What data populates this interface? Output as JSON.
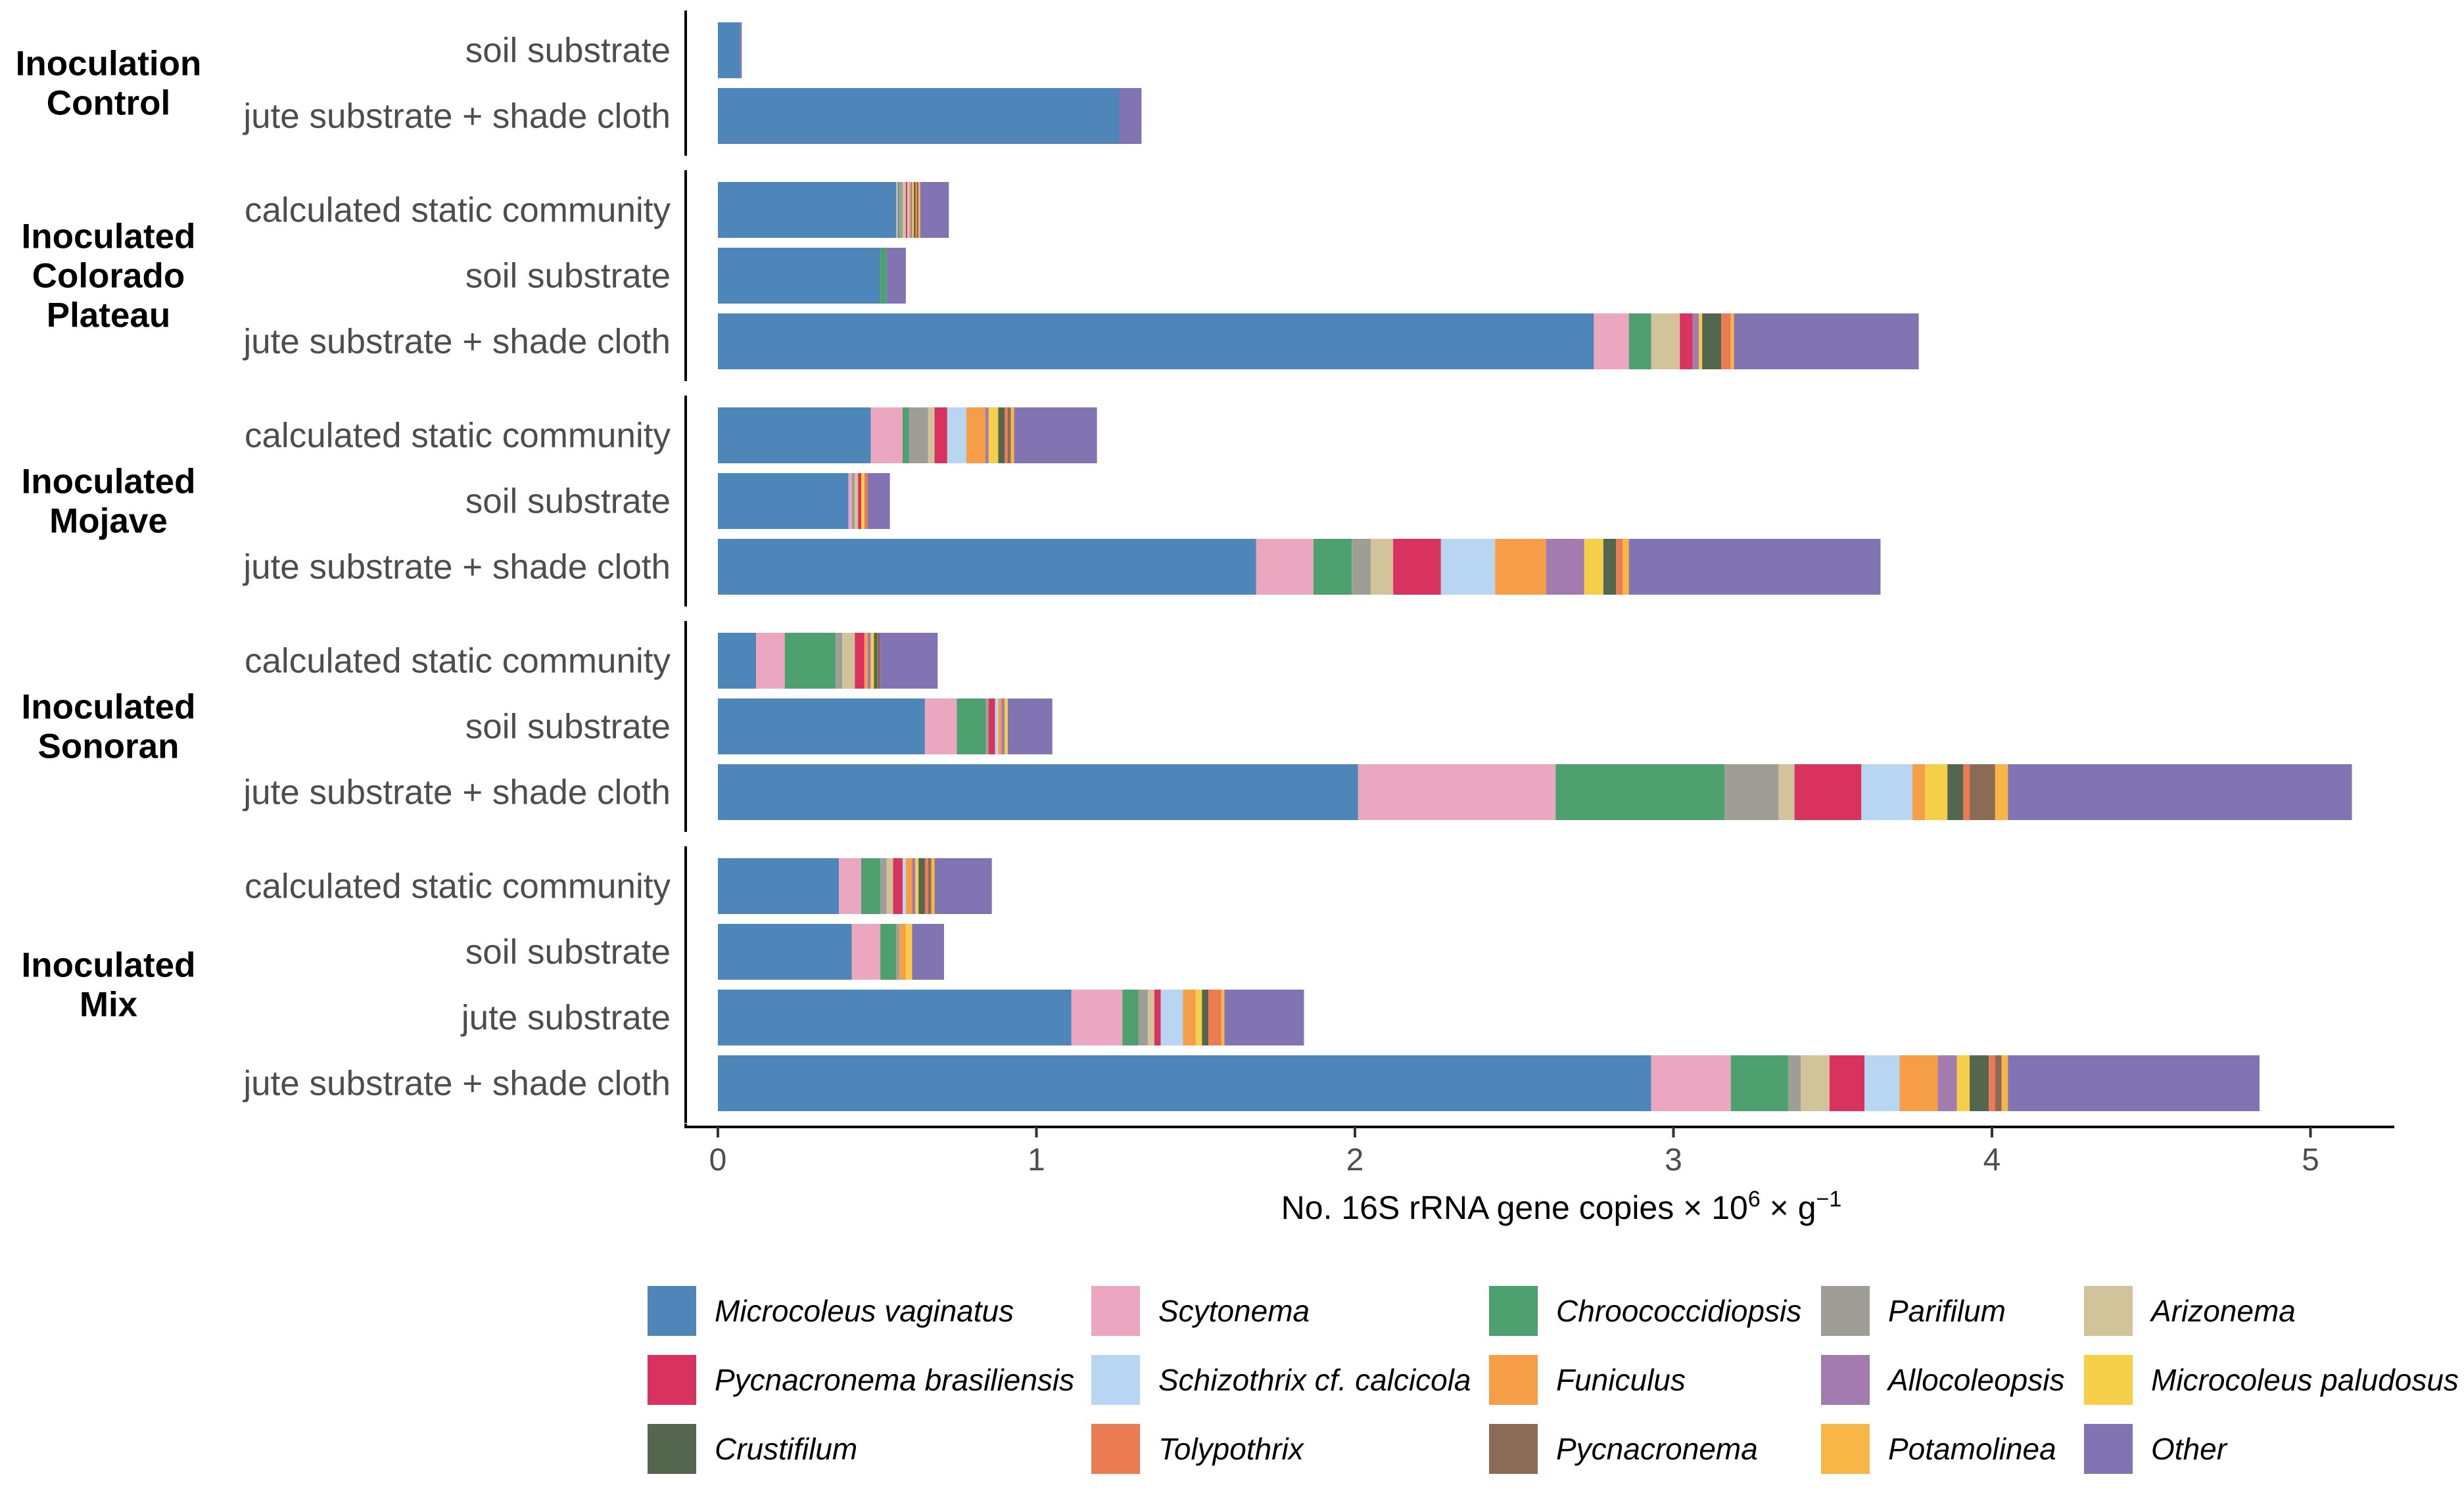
{
  "chart_data": {
    "type": "bar",
    "orientation": "horizontal",
    "stacked": true,
    "xlabel": "No. 16S rRNA gene copies × 10^6 × g^−1",
    "xlabel_parts": {
      "main": "No. 16S rRNA gene copies × 10",
      "exp1": "6",
      "mid": " × g",
      "exp2": "−1"
    },
    "xlim": [
      0,
      5.25
    ],
    "xticks": [
      0,
      1,
      2,
      3,
      4,
      5
    ],
    "legend_position": "bottom",
    "taxa": [
      {
        "name": "Microcoleus vaginatus",
        "color": "#4E86BA",
        "italic": true
      },
      {
        "name": "Scytonema",
        "color": "#EBA7BF",
        "italic": true
      },
      {
        "name": "Chroococcidiopsis",
        "color": "#4FA06F",
        "italic": true
      },
      {
        "name": "Parifilum",
        "color": "#9E9E96",
        "italic": true
      },
      {
        "name": "Arizonema",
        "color": "#D2C49A",
        "italic": true
      },
      {
        "name": "Pycnacronema brasiliensis",
        "color": "#D8335F",
        "italic": true
      },
      {
        "name": "Schizothrix cf. calcicola",
        "color": "#B8D6F2",
        "italic": true
      },
      {
        "name": "Funiculus",
        "color": "#F59D47",
        "italic": true
      },
      {
        "name": "Allocoleopsis",
        "color": "#A37BAE",
        "italic": true
      },
      {
        "name": "Microcoleus paludosus",
        "color": "#F5CE4A",
        "italic": true
      },
      {
        "name": "Crustifilum",
        "color": "#55664E",
        "italic": true
      },
      {
        "name": "Tolypothrix",
        "color": "#EB7B53",
        "italic": true
      },
      {
        "name": "Pycnacronema",
        "color": "#8B6B55",
        "italic": true
      },
      {
        "name": "Potamolinea",
        "color": "#F7B646",
        "italic": true
      },
      {
        "name": "Other",
        "color": "#8273B2",
        "italic": true
      }
    ],
    "groups": [
      {
        "label_lines": [
          "Inoculation",
          "Control"
        ],
        "rows": [
          {
            "label": "soil substrate",
            "values": [
              0.07,
              0,
              0,
              0,
              0,
              0,
              0,
              0,
              0,
              0,
              0,
              0,
              0,
              0,
              0.005
            ]
          },
          {
            "label": "jute substrate + shade cloth",
            "values": [
              1.26,
              0,
              0,
              0,
              0,
              0,
              0,
              0,
              0,
              0,
              0,
              0,
              0,
              0,
              0.07
            ]
          }
        ]
      },
      {
        "label_lines": [
          "Inoculated",
          "Colorado",
          "Plateau"
        ],
        "rows": [
          {
            "label": "calculated static community",
            "values": [
              0.56,
              0.005,
              0.005,
              0.01,
              0.01,
              0.005,
              0.005,
              0.005,
              0.005,
              0.005,
              0.005,
              0.005,
              0.005,
              0.005,
              0.09
            ]
          },
          {
            "label": "soil substrate",
            "values": [
              0.51,
              0,
              0.02,
              0,
              0,
              0,
              0,
              0,
              0,
              0,
              0,
              0,
              0,
              0,
              0.06
            ]
          },
          {
            "label": "jute substrate + shade cloth",
            "values": [
              2.75,
              0.11,
              0.07,
              0,
              0.09,
              0.04,
              0,
              0,
              0.02,
              0.01,
              0.06,
              0.03,
              0,
              0.01,
              0.58
            ]
          }
        ]
      },
      {
        "label_lines": [
          "Inoculated",
          "Mojave"
        ],
        "rows": [
          {
            "label": "calculated static community",
            "values": [
              0.48,
              0.1,
              0.02,
              0.06,
              0.02,
              0.04,
              0.06,
              0.06,
              0.01,
              0.03,
              0.02,
              0.01,
              0.01,
              0.01,
              0.26
            ]
          },
          {
            "label": "soil substrate",
            "values": [
              0.41,
              0.01,
              0,
              0.01,
              0.01,
              0.01,
              0,
              0,
              0,
              0.01,
              0,
              0.01,
              0,
              0,
              0.07
            ]
          },
          {
            "label": "jute substrate + shade cloth",
            "values": [
              1.69,
              0.18,
              0.12,
              0.06,
              0.07,
              0.15,
              0.17,
              0.16,
              0.12,
              0.06,
              0.04,
              0.02,
              0,
              0.02,
              0.79
            ]
          }
        ]
      },
      {
        "label_lines": [
          "Inoculated",
          "Sonoran"
        ],
        "rows": [
          {
            "label": "calculated static community",
            "values": [
              0.12,
              0.09,
              0.16,
              0.02,
              0.04,
              0.03,
              0,
              0.01,
              0.01,
              0.01,
              0.01,
              0,
              0.01,
              0,
              0.18
            ]
          },
          {
            "label": "soil substrate",
            "values": [
              0.65,
              0.1,
              0.09,
              0.01,
              0,
              0.02,
              0.01,
              0.01,
              0.01,
              0.01,
              0,
              0,
              0,
              0,
              0.14
            ]
          },
          {
            "label": "jute substrate + shade cloth",
            "values": [
              2.01,
              0.62,
              0.53,
              0.17,
              0.05,
              0.21,
              0.16,
              0.04,
              0,
              0.07,
              0.05,
              0.02,
              0.08,
              0.04,
              1.08
            ]
          }
        ]
      },
      {
        "label_lines": [
          "Inoculated",
          "Mix"
        ],
        "rows": [
          {
            "label": "calculated static community",
            "values": [
              0.38,
              0.07,
              0.06,
              0.02,
              0.02,
              0.03,
              0.01,
              0.02,
              0.01,
              0.01,
              0.02,
              0.01,
              0.01,
              0.01,
              0.18
            ]
          },
          {
            "label": "soil substrate",
            "values": [
              0.42,
              0.09,
              0.05,
              0.01,
              0,
              0,
              0,
              0.02,
              0,
              0.02,
              0,
              0,
              0,
              0,
              0.1
            ]
          },
          {
            "label": "jute substrate",
            "values": [
              1.11,
              0.16,
              0.05,
              0.03,
              0.02,
              0.02,
              0.07,
              0.04,
              0,
              0.02,
              0.02,
              0.04,
              0,
              0.01,
              0.25
            ]
          },
          {
            "label": "jute substrate + shade cloth",
            "values": [
              2.93,
              0.25,
              0.18,
              0.04,
              0.09,
              0.11,
              0.11,
              0.12,
              0.06,
              0.04,
              0.06,
              0.02,
              0.02,
              0.02,
              0.79
            ]
          }
        ]
      }
    ]
  }
}
